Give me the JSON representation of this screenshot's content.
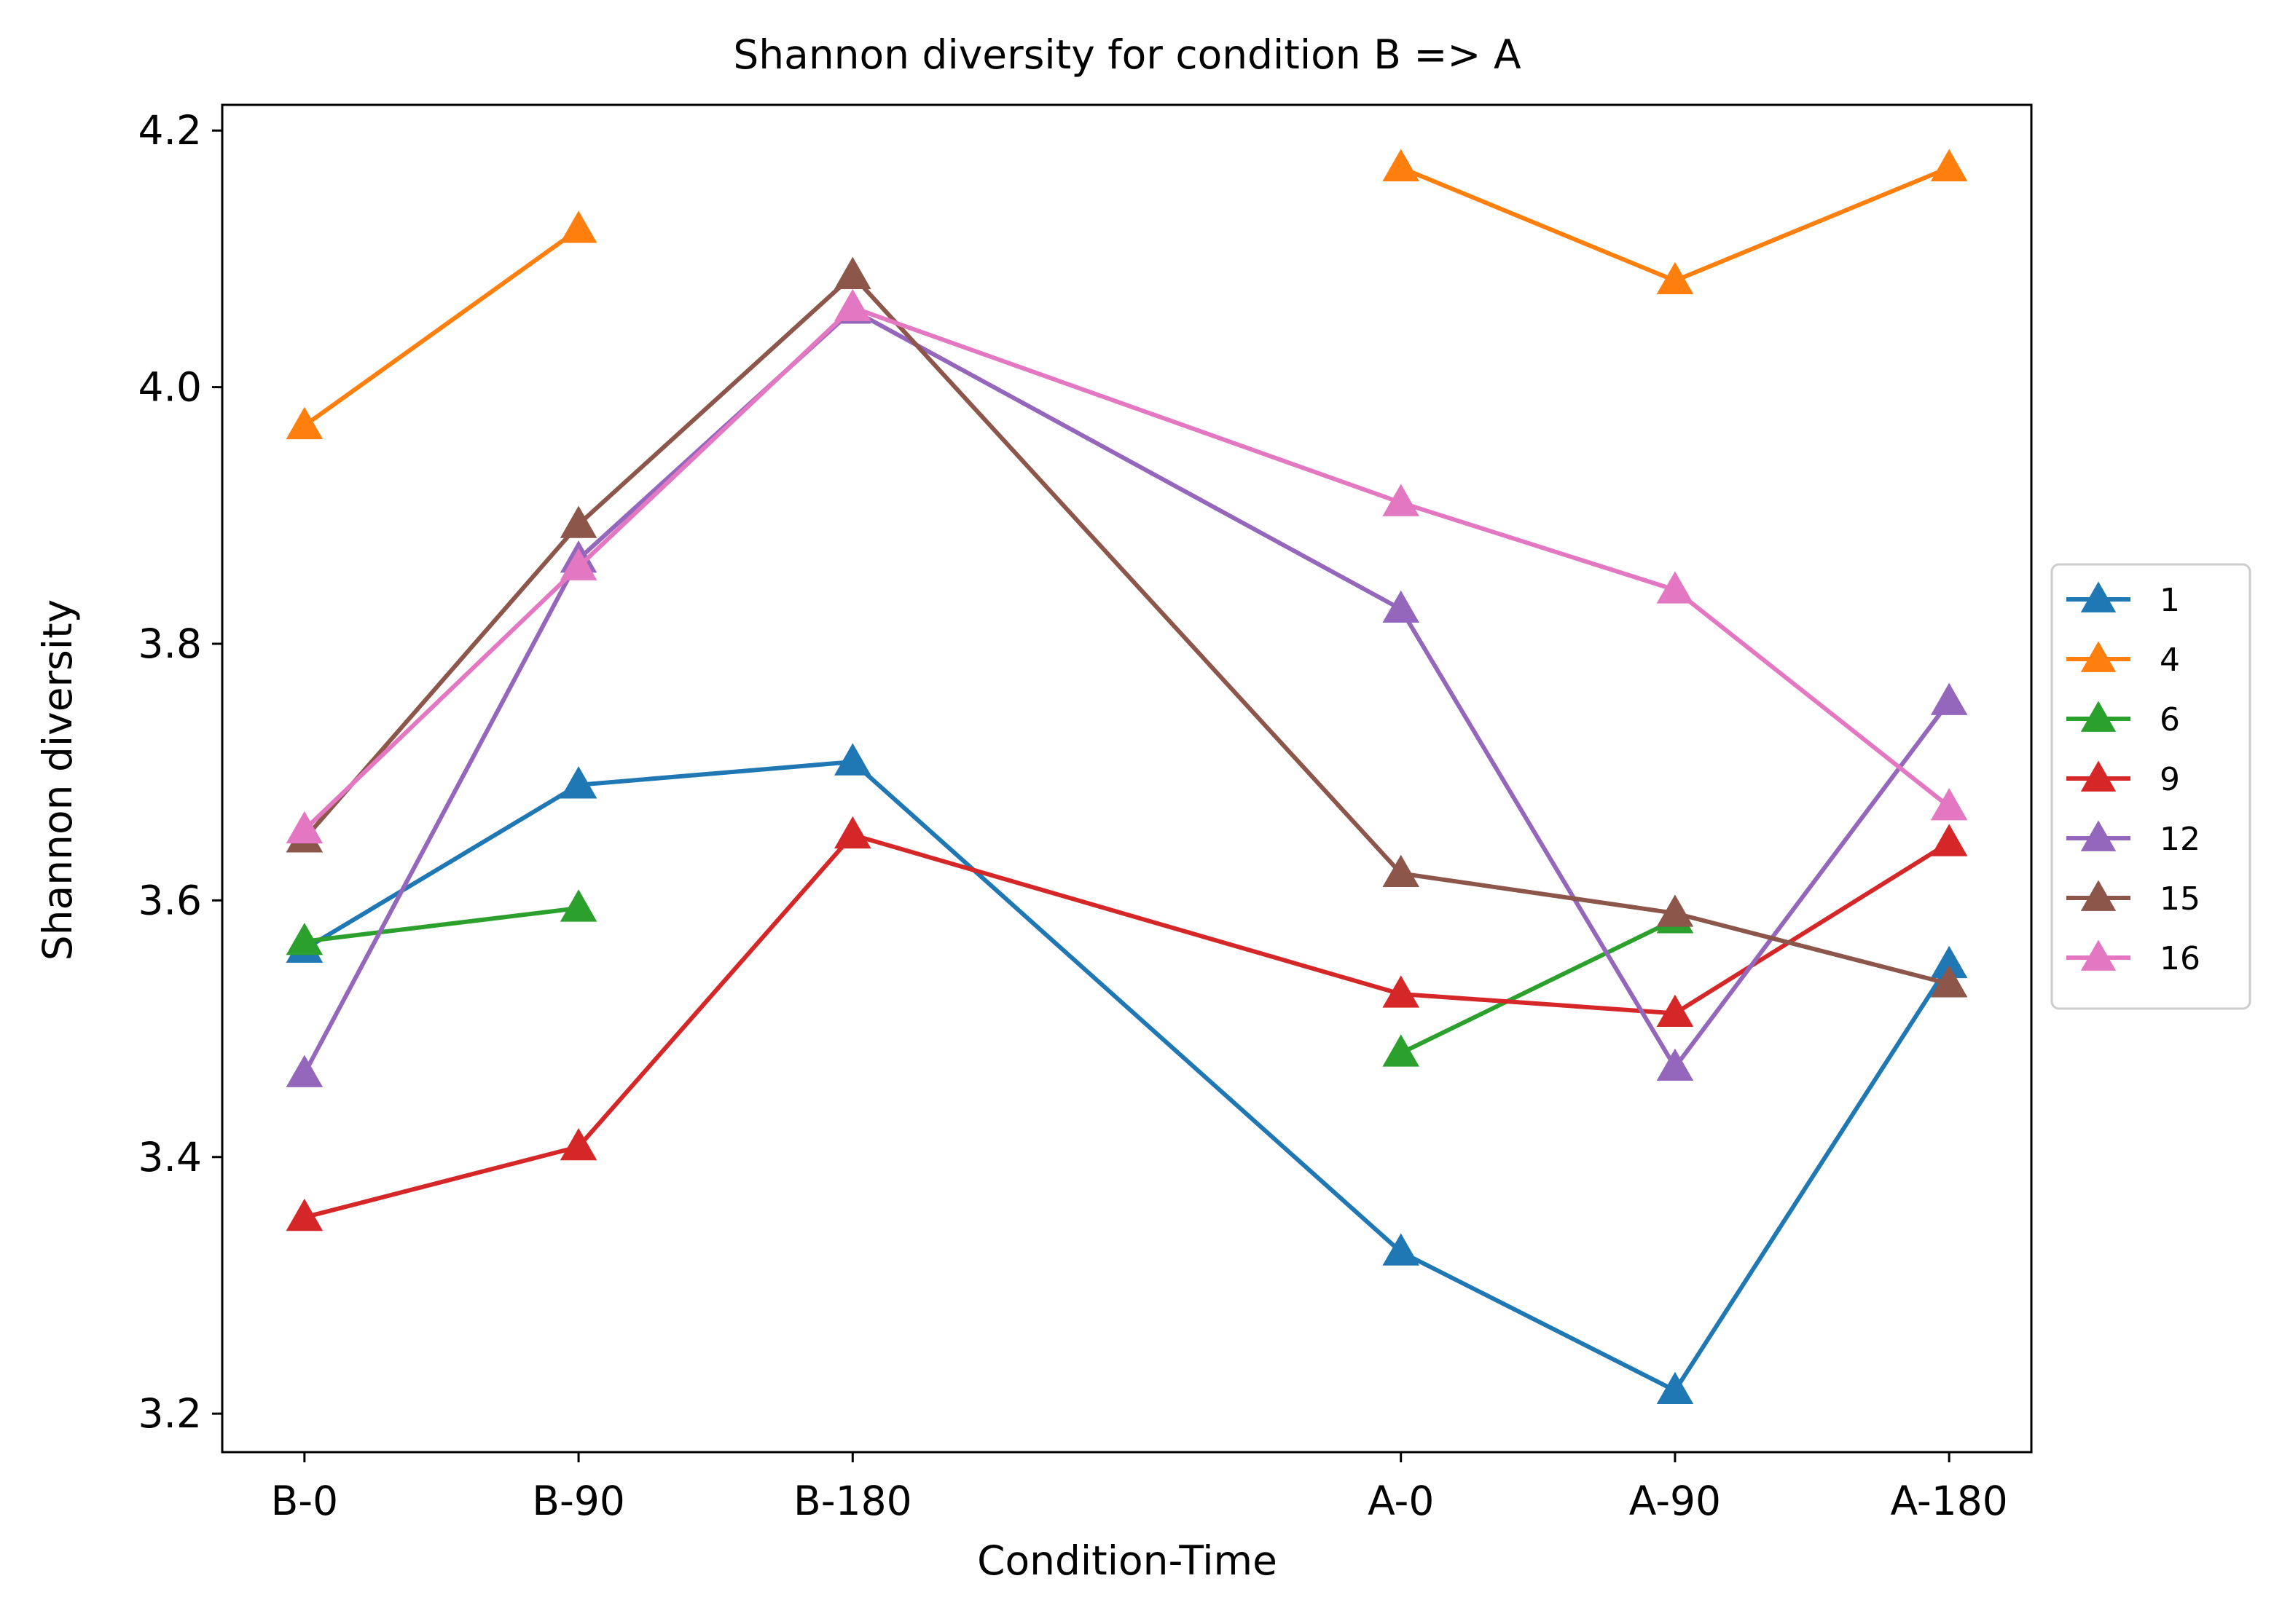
{
  "chart_data": {
    "type": "line",
    "title": "Shannon diversity for condition B => A",
    "xlabel": "Condition-Time",
    "ylabel": "Shannon diversity",
    "categories": [
      "B-0",
      "B-90",
      "B-180",
      "A-0",
      "A-90",
      "A-180"
    ],
    "x_positions": [
      0,
      1,
      2,
      4,
      5,
      6
    ],
    "xlim": [
      -0.3,
      6.3
    ],
    "ylim": [
      3.17,
      4.22
    ],
    "yticks": [
      3.2,
      3.4,
      3.6,
      3.8,
      4.0,
      4.2
    ],
    "ytick_labels": [
      "3.2",
      "3.4",
      "3.6",
      "3.8",
      "4.0",
      "4.2"
    ],
    "grid": false,
    "legend_position": "right-outside",
    "marker": "triangle-up",
    "series": [
      {
        "name": "1",
        "color": "#1f77b4",
        "values": [
          3.562,
          3.69,
          3.708,
          3.326,
          3.218,
          3.55
        ]
      },
      {
        "name": "4",
        "color": "#ff7f0e",
        "values": [
          3.97,
          4.123,
          null,
          4.171,
          4.083,
          4.171
        ]
      },
      {
        "name": "6",
        "color": "#2ca02c",
        "values": [
          3.568,
          3.594,
          null,
          3.481,
          3.585,
          null
        ]
      },
      {
        "name": "9",
        "color": "#d62728",
        "values": [
          3.353,
          3.408,
          3.651,
          3.527,
          3.512,
          3.645
        ]
      },
      {
        "name": "12",
        "color": "#9467bd",
        "values": [
          3.465,
          3.866,
          4.06,
          3.827,
          3.47,
          3.755
        ]
      },
      {
        "name": "15",
        "color": "#8c564b",
        "values": [
          3.648,
          3.893,
          4.087,
          3.621,
          3.59,
          3.535
        ]
      },
      {
        "name": "16",
        "color": "#e377c2",
        "values": [
          3.655,
          3.86,
          4.062,
          3.91,
          3.842,
          3.673
        ]
      }
    ]
  }
}
